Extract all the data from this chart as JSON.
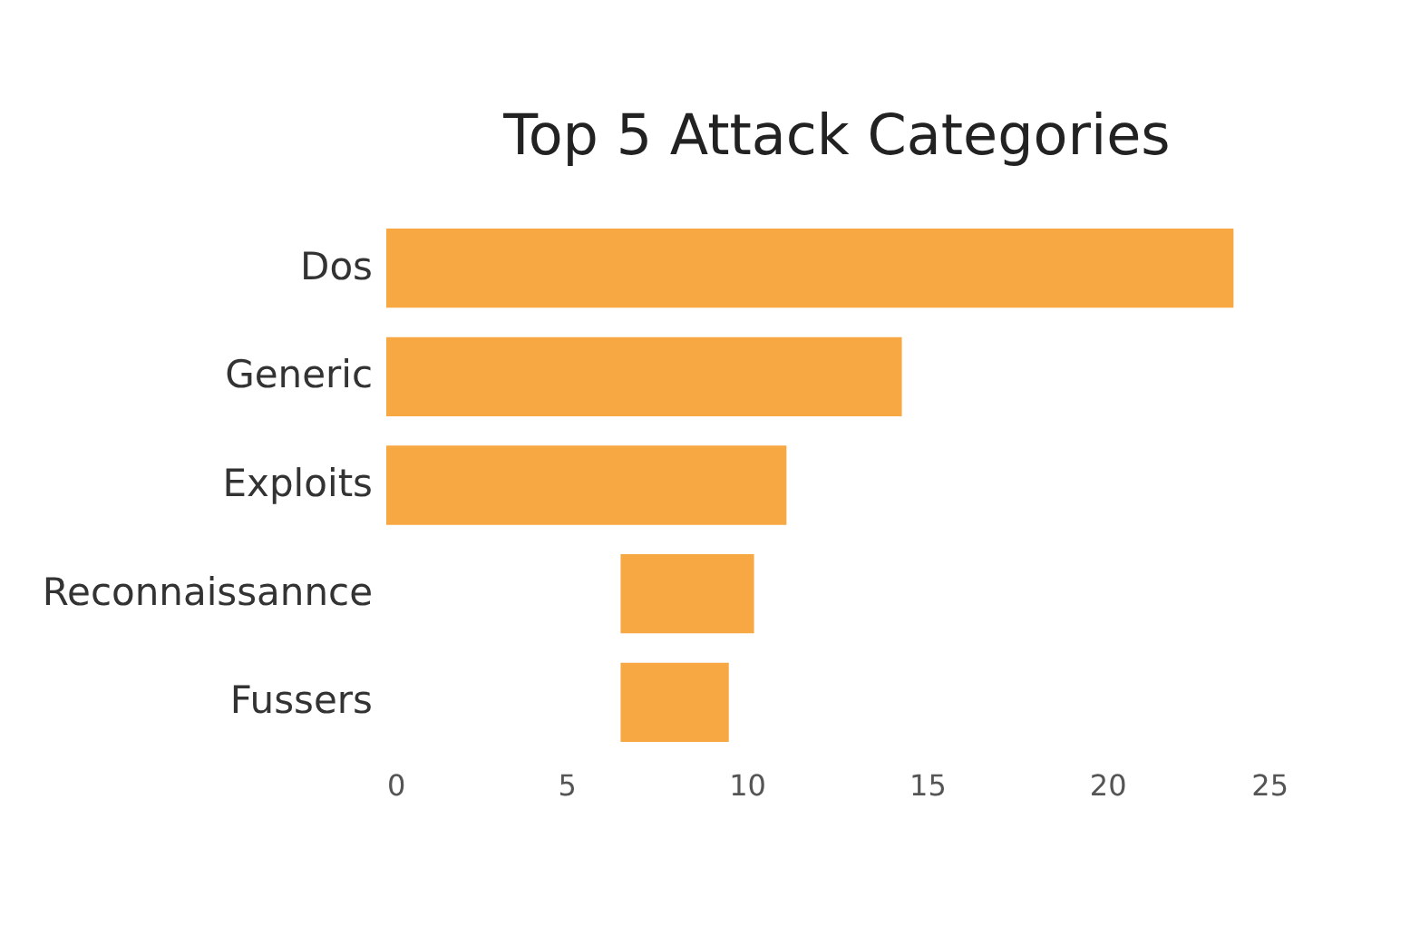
{
  "chart_data": {
    "type": "bar",
    "orientation": "horizontal",
    "title": "Top 5 Attack Categories",
    "categories": [
      "Dos",
      "Generic",
      "Exploits",
      "Reconnaissannce",
      "Fussers"
    ],
    "values": [
      23.5,
      14.3,
      11.1,
      3.7,
      3.0
    ],
    "base": [
      0,
      0,
      0,
      6.5,
      6.5
    ],
    "color": "#f7a843",
    "xlim": [
      0,
      25
    ],
    "xticks": [
      0,
      5,
      10,
      15,
      20,
      25
    ],
    "grid": false
  }
}
